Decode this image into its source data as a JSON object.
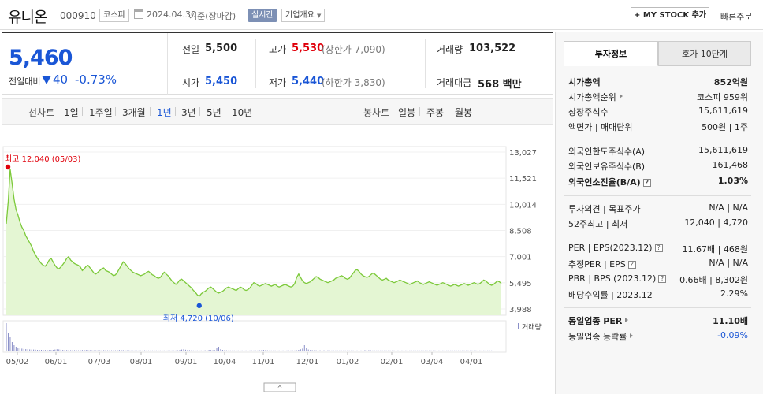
{
  "header": {
    "stock_name": "유니온",
    "stock_code": "000910",
    "market": "코스피",
    "date": "2024.04.30",
    "basis": "기준(장마감)",
    "realtime": "실시간",
    "company_info": "기업개요",
    "mystock_btn": "+ MY STOCK 추가",
    "quick_order": "빠른주문"
  },
  "price": {
    "current": "5,460",
    "diff_label": "전일대비",
    "diff": "40",
    "diff_pct": "-0.73%",
    "prev_label": "전일",
    "prev": "5,500",
    "high_label": "고가",
    "high": "5,530",
    "upper_limit": "(상한가 7,090)",
    "volume_label": "거래량",
    "volume": "103,522",
    "open_label": "시가",
    "open": "5,450",
    "low_label": "저가",
    "low": "5,440",
    "lower_limit": "(하한가 3,830)",
    "amount_label": "거래대금",
    "amount": "568 백만"
  },
  "tabs": {
    "line_head": "선차트",
    "line": [
      "1일",
      "1주일",
      "3개월",
      "1년",
      "3년",
      "5년",
      "10년"
    ],
    "active": "1년",
    "candle_head": "봉차트",
    "candle": [
      "일봉",
      "주봉",
      "월봉"
    ]
  },
  "colors": {
    "up": "#e0000b",
    "down": "#1a56d6",
    "line": "#7cc93a",
    "fill": "#e4f6d3"
  },
  "chart_data": {
    "type": "area",
    "y_ticks": [
      "13,027",
      "11,521",
      "10,014",
      "8,508",
      "7,001",
      "5,495",
      "3,988"
    ],
    "ylim": [
      3988,
      13027
    ],
    "x_ticks": [
      "05/02",
      "06/01",
      "07/03",
      "08/01",
      "09/01",
      "10/04",
      "11/01",
      "12/01",
      "01/02",
      "02/01",
      "03/04",
      "04/01"
    ],
    "high_annotation": "최고 12,040 (05/03)",
    "low_annotation": "최저 4,720 (10/06)",
    "high_value": 12040,
    "low_value": 4720,
    "volume_label": "거래량",
    "series": [
      {
        "values": [
          8900,
          10200,
          12040,
          11200,
          10300,
          9700,
          9400,
          9000,
          8700,
          8500,
          8200,
          8000,
          7800,
          7600,
          7300,
          7100,
          6900,
          6750,
          6600,
          6500,
          6450,
          6600,
          6800,
          6900,
          6700,
          6500,
          6350,
          6300,
          6400,
          6550,
          6700,
          6900,
          7000,
          6800,
          6700,
          6600,
          6550,
          6500,
          6400,
          6200,
          6300,
          6450,
          6500,
          6350,
          6200,
          6050,
          6000,
          6100,
          6200,
          6300,
          6350,
          6200,
          6150,
          6100,
          6000,
          5900,
          5950,
          6100,
          6300,
          6500,
          6700,
          6600,
          6450,
          6300,
          6200,
          6100,
          6050,
          6000,
          5950,
          5900,
          5950,
          6000,
          6100,
          6150,
          6050,
          5950,
          5900,
          5800,
          5750,
          5800,
          5950,
          6100,
          6000,
          5900,
          5750,
          5600,
          5500,
          5400,
          5500,
          5650,
          5700,
          5600,
          5500,
          5400,
          5300,
          5200,
          5050,
          4950,
          4800,
          4720,
          4850,
          4950,
          5000,
          5100,
          5200,
          5250,
          5150,
          5050,
          4950,
          4900,
          4950,
          5000,
          5100,
          5200,
          5250,
          5200,
          5150,
          5100,
          5050,
          5150,
          5250,
          5200,
          5100,
          5050,
          5100,
          5200,
          5350,
          5500,
          5450,
          5350,
          5300,
          5350,
          5400,
          5450,
          5400,
          5350,
          5300,
          5350,
          5400,
          5300,
          5250,
          5300,
          5350,
          5400,
          5350,
          5300,
          5250,
          5300,
          5450,
          5800,
          6000,
          5800,
          5600,
          5500,
          5450,
          5500,
          5550,
          5650,
          5750,
          5850,
          5800,
          5700,
          5650,
          5600,
          5550,
          5500,
          5550,
          5600,
          5650,
          5750,
          5800,
          5850,
          5900,
          5850,
          5750,
          5700,
          5750,
          5900,
          6050,
          6200,
          6250,
          6150,
          6000,
          5900,
          5850,
          5800,
          5850,
          5950,
          6050,
          6000,
          5900,
          5800,
          5700,
          5650,
          5700,
          5750,
          5650,
          5600,
          5550,
          5500,
          5550,
          5600,
          5650,
          5600,
          5550,
          5500,
          5450,
          5400,
          5450,
          5500,
          5550,
          5600,
          5500,
          5450,
          5400,
          5450,
          5500,
          5550,
          5500,
          5450,
          5400,
          5350,
          5400,
          5450,
          5500,
          5450,
          5400,
          5350,
          5300,
          5350,
          5400,
          5350,
          5300,
          5350,
          5400,
          5450,
          5400,
          5350,
          5400,
          5450,
          5500,
          5450,
          5400,
          5450,
          5550,
          5650,
          5600,
          5500,
          5400,
          5350,
          5400,
          5500,
          5600,
          5550,
          5460
        ]
      },
      {
        "name": "거래량",
        "values": [
          180,
          120,
          90,
          60,
          40,
          30,
          25,
          20,
          18,
          16,
          15,
          14,
          13,
          12,
          12,
          11,
          10,
          10,
          10,
          9,
          9,
          9,
          9,
          9,
          10,
          12,
          14,
          13,
          11,
          10,
          9,
          9,
          8,
          8,
          8,
          8,
          8,
          7,
          8,
          9,
          10,
          9,
          8,
          8,
          7,
          7,
          7,
          7,
          7,
          7,
          8,
          8,
          7,
          7,
          7,
          7,
          7,
          8,
          9,
          10,
          8,
          7,
          7,
          7,
          6,
          6,
          6,
          6,
          6,
          6,
          6,
          7,
          6,
          6,
          6,
          6,
          6,
          6,
          6,
          6,
          6,
          6,
          6,
          6,
          6,
          6,
          6,
          6,
          7,
          9,
          12,
          14,
          11,
          9,
          8,
          7,
          6,
          6,
          6,
          6,
          6,
          6,
          7,
          8,
          10,
          9,
          8,
          8,
          20,
          30,
          15,
          10,
          8,
          7,
          6,
          6,
          6,
          6,
          6,
          6,
          6,
          6,
          6,
          6,
          6,
          6,
          6,
          6,
          6,
          6,
          7,
          8,
          10,
          8,
          7,
          6,
          6,
          6,
          6,
          6,
          6,
          6,
          6,
          6,
          6,
          6,
          6,
          6,
          6,
          7,
          10,
          14,
          18,
          40,
          20,
          12,
          9,
          8,
          7,
          7,
          7,
          7,
          7,
          7,
          7,
          7,
          6,
          6,
          6,
          6,
          6,
          6,
          6,
          6,
          6,
          6,
          6,
          6,
          6,
          6,
          6,
          6,
          6,
          7,
          8,
          9,
          8,
          7,
          6,
          6,
          6,
          6,
          6,
          6,
          6,
          6,
          6,
          6,
          6,
          6,
          6,
          6,
          6,
          6,
          6,
          6,
          6,
          6,
          6,
          6,
          6,
          6,
          6,
          6,
          6,
          6,
          6,
          6,
          6,
          6,
          6,
          6,
          6,
          6,
          6,
          6,
          6,
          6,
          6,
          6,
          6,
          6,
          6,
          6,
          6,
          6,
          6,
          6,
          6,
          6,
          6,
          6,
          6,
          6,
          6,
          6,
          6,
          6,
          6,
          6
        ]
      }
    ]
  },
  "invest": {
    "tab_info": "투자정보",
    "tab_hoga": "호가 10단계",
    "rows": [
      {
        "label": "시가총액",
        "value": "852억원"
      },
      {
        "label": "시가총액순위",
        "value": "코스피 959위"
      },
      {
        "label": "상장주식수",
        "value": "15,611,619"
      },
      {
        "label": "액면가 | 매매단위",
        "value": "500원 | 1주"
      },
      {
        "label": "외국인한도주식수(A)",
        "value": "15,611,619"
      },
      {
        "label": "외국인보유주식수(B)",
        "value": "161,468"
      },
      {
        "label": "외국인소진율(B/A)",
        "value": "1.03%"
      },
      {
        "label": "투자의견 | 목표주가",
        "value": "N/A | N/A"
      },
      {
        "label": "52주최고 | 최저",
        "value": "12,040 | 4,720"
      },
      {
        "label": "PER | EPS(2023.12)",
        "value": "11.67배 | 468원"
      },
      {
        "label": "추정PER | EPS",
        "value": "N/A | N/A"
      },
      {
        "label": "PBR | BPS (2023.12)",
        "value": "0.66배 | 8,302원"
      },
      {
        "label": "배당수익률 | 2023.12",
        "value": "2.29%"
      },
      {
        "label": "동일업종 PER",
        "value": "11.10배"
      },
      {
        "label": "동일업종 등락률",
        "value": "-0.09%"
      }
    ]
  }
}
